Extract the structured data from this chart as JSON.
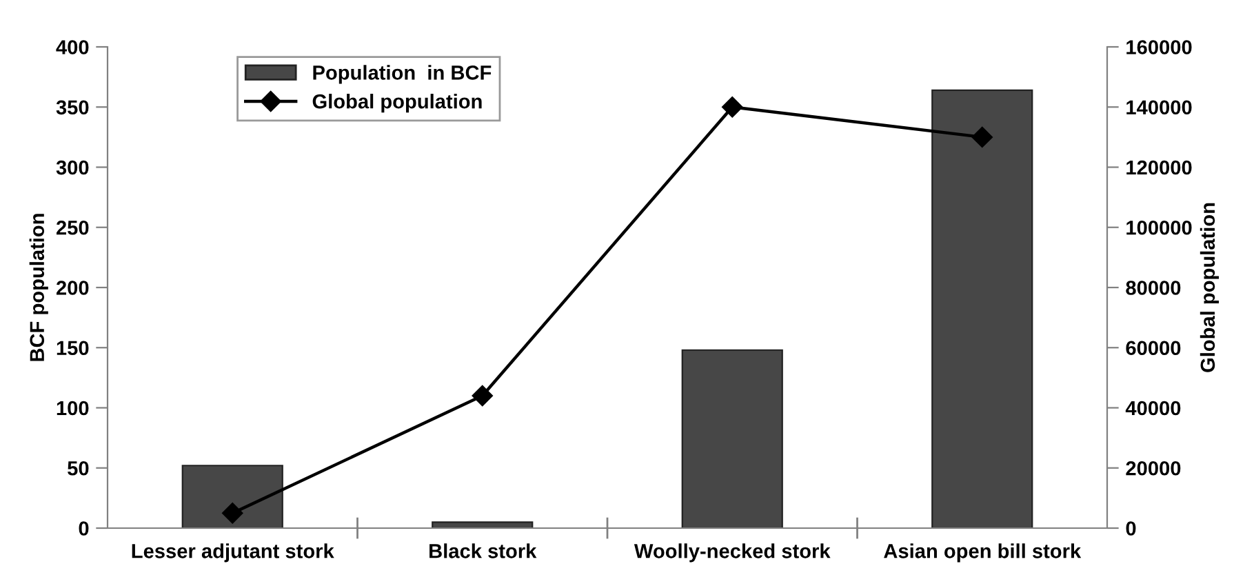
{
  "chart_data": {
    "type": "bar",
    "categories": [
      "Lesser adjutant stork",
      "Black stork",
      "Woolly-necked stork",
      "Asian open bill stork"
    ],
    "series": [
      {
        "name": "Population  in BCF",
        "color": "#474747",
        "values": [
          52,
          5,
          148,
          364
        ]
      },
      {
        "name": "Global population",
        "type": "line",
        "axis": "y2",
        "color": "#000000",
        "marker": "diamond",
        "values": [
          5000,
          44000,
          140000,
          130000
        ]
      }
    ],
    "ylabel": "BCF population",
    "y2label": "Global population",
    "ylim": [
      0,
      400
    ],
    "yticks": [
      0,
      50,
      100,
      150,
      200,
      250,
      300,
      350,
      400
    ],
    "y2lim": [
      0,
      160000
    ],
    "y2ticks": [
      0,
      20000,
      40000,
      60000,
      80000,
      100000,
      120000,
      140000,
      160000
    ],
    "grid": false,
    "legend": "top left"
  }
}
